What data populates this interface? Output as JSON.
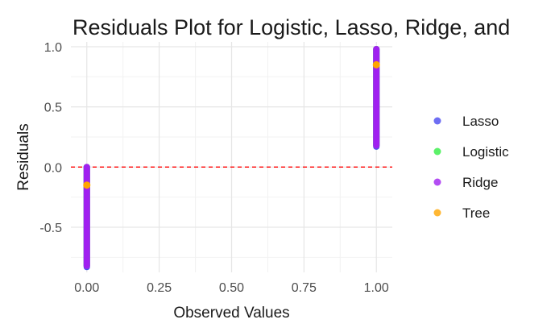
{
  "chart_data": {
    "type": "scatter",
    "title": "Residuals Plot for Logistic, Lasso, Ridge, and",
    "xlabel": "Observed Values",
    "ylabel": "Residuals",
    "xlim": [
      -0.055,
      1.055
    ],
    "ylim": [
      -0.875,
      1.04
    ],
    "x_ticks": [
      {
        "value": 0,
        "label": "0.00"
      },
      {
        "value": 0.25,
        "label": "0.25"
      },
      {
        "value": 0.5,
        "label": "0.50"
      },
      {
        "value": 0.75,
        "label": "0.75"
      },
      {
        "value": 1,
        "label": "1.00"
      }
    ],
    "y_ticks": [
      {
        "value": -0.5,
        "label": "-0.5"
      },
      {
        "value": 0,
        "label": "0.0"
      },
      {
        "value": 0.5,
        "label": "0.5"
      },
      {
        "value": 1,
        "label": "1.0"
      }
    ],
    "grid": true,
    "legend_position": "right",
    "reference_line": {
      "y": 0,
      "color": "#ff0000",
      "style": "dashed"
    },
    "series": [
      {
        "name": "Lasso",
        "color": "#4a4af0",
        "segments": [
          {
            "x": 0,
            "y_min": -0.83,
            "y_max": 0.0
          },
          {
            "x": 1,
            "y_min": 0.17,
            "y_max": 0.98
          }
        ]
      },
      {
        "name": "Logistic",
        "color": "#33ee44",
        "segments": [
          {
            "x": 0,
            "y_min": -0.82,
            "y_max": 0.0
          },
          {
            "x": 1,
            "y_min": 0.18,
            "y_max": 0.98
          }
        ]
      },
      {
        "name": "Ridge",
        "color": "#a020f0",
        "segments": [
          {
            "x": 0,
            "y_min": -0.82,
            "y_max": 0.0
          },
          {
            "x": 1,
            "y_min": 0.18,
            "y_max": 0.98
          }
        ]
      },
      {
        "name": "Tree",
        "color": "#ffa500",
        "points": [
          {
            "x": 0,
            "y": -0.15
          },
          {
            "x": 1,
            "y": 0.85
          }
        ]
      }
    ]
  }
}
